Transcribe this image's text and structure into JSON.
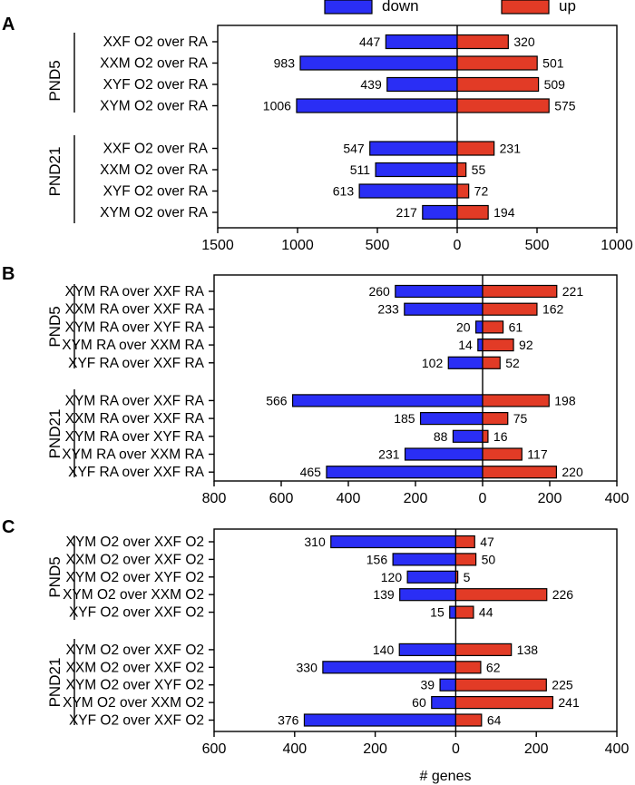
{
  "legend": {
    "down_label": "down",
    "up_label": "up",
    "down_color": "#2a2ef5",
    "up_color": "#e23b26"
  },
  "xlabel": "# genes",
  "chart_data": [
    {
      "type": "bar",
      "panel_letter": "A",
      "xlim": [
        -1500,
        1000
      ],
      "xticks": [
        "1500",
        "1000",
        "500",
        "0",
        "500",
        "1000"
      ],
      "groups": [
        {
          "name": "PND5",
          "categories": [
            "XXF O2 over RA",
            "XXM O2 over RA",
            "XYF O2 over RA",
            "XYM O2 over RA"
          ],
          "down": [
            447,
            983,
            439,
            1006
          ],
          "up": [
            320,
            501,
            509,
            575
          ]
        },
        {
          "name": "PND21",
          "categories": [
            "XXF O2 over RA",
            "XXM O2 over RA",
            "XYF O2 over RA",
            "XYM O2 over RA"
          ],
          "down": [
            547,
            511,
            613,
            217
          ],
          "up": [
            231,
            55,
            72,
            194
          ]
        }
      ]
    },
    {
      "type": "bar",
      "panel_letter": "B",
      "xlim": [
        -800,
        400
      ],
      "xticks": [
        "800",
        "600",
        "400",
        "200",
        "0",
        "200",
        "400"
      ],
      "groups": [
        {
          "name": "PND5",
          "categories": [
            "XYM RA over XXF RA",
            "XXM RA over XXF RA",
            "XYM RA over XYF RA",
            "XYM RA over XXM RA",
            "XYF RA over XXF RA"
          ],
          "down": [
            260,
            233,
            20,
            14,
            102
          ],
          "up": [
            221,
            162,
            61,
            92,
            52
          ]
        },
        {
          "name": "PND21",
          "categories": [
            "XYM RA over XXF RA",
            "XXM RA over XXF RA",
            "XYM RA over XYF RA",
            "XYM RA over XXM RA",
            "XYF RA over XXF RA"
          ],
          "down": [
            566,
            185,
            88,
            231,
            465
          ],
          "up": [
            198,
            75,
            16,
            117,
            220
          ]
        }
      ]
    },
    {
      "type": "bar",
      "panel_letter": "C",
      "xlim": [
        -600,
        400
      ],
      "xticks": [
        "600",
        "400",
        "200",
        "0",
        "200",
        "400"
      ],
      "groups": [
        {
          "name": "PND5",
          "categories": [
            "XYM O2 over XXF O2",
            "XXM O2 over XXF O2",
            "XYM O2 over XYF O2",
            "XYM O2 over XXM O2",
            "XYF O2 over XXF O2"
          ],
          "down": [
            310,
            156,
            120,
            139,
            15
          ],
          "up": [
            47,
            50,
            5,
            226,
            44
          ]
        },
        {
          "name": "PND21",
          "categories": [
            "XYM O2 over XXF O2",
            "XXM O2 over XXF O2",
            "XYM O2 over XYF O2",
            "XYM O2 over XXM O2",
            "XYF O2 over XXF O2"
          ],
          "down": [
            140,
            330,
            39,
            60,
            376
          ],
          "up": [
            138,
            62,
            225,
            241,
            64
          ]
        }
      ]
    }
  ]
}
